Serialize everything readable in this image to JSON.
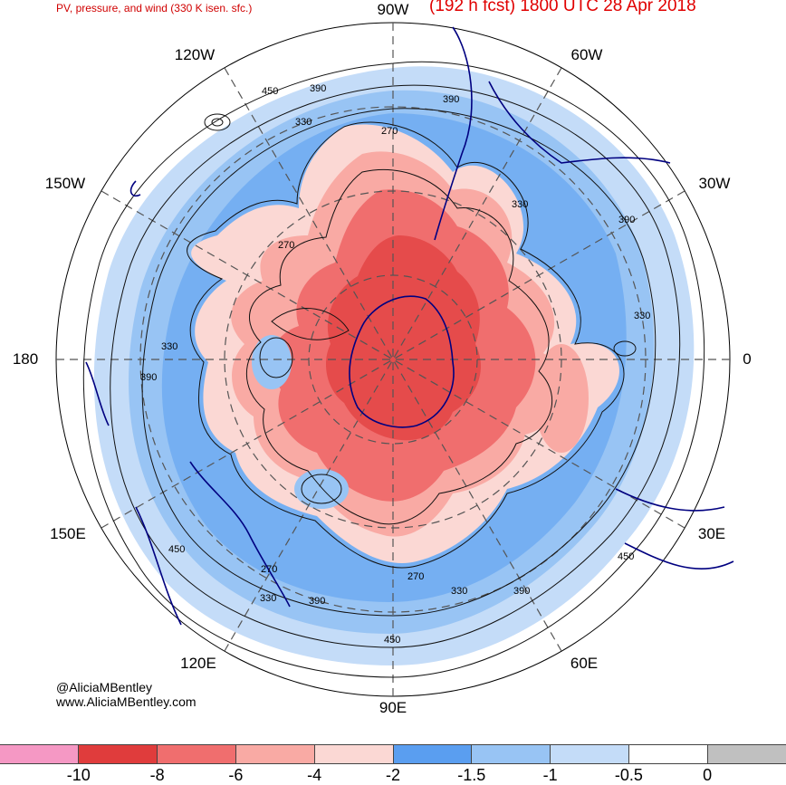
{
  "header": {
    "title_left": "PV, pressure, and wind (330 K isen. sfc.)",
    "title_right": "(192 h fcst) 1800 UTC 28 Apr 2018"
  },
  "longitude_labels": {
    "top": "90W",
    "top_left": "120W",
    "top_right": "60W",
    "upper_left": "150W",
    "upper_right": "30W",
    "left": "180",
    "right": "0",
    "lower_left": "150E",
    "lower_right": "30E",
    "bottom_left": "120E",
    "bottom_right": "60E",
    "bottom": "90E"
  },
  "credits": {
    "handle": "@AliciaMBentley",
    "website": "www.AliciaMBentley.com"
  },
  "contour_labels": {
    "c1": "450",
    "c2": "390",
    "c3": "390",
    "c4": "330",
    "c5": "270",
    "c6": "330",
    "c7": "390",
    "c8": "270",
    "c9": "330",
    "c10": "330",
    "c11": "390",
    "c12": "450",
    "c13": "270",
    "c14": "330",
    "c15": "390",
    "c16": "270",
    "c17": "330",
    "c18": "390",
    "c19": "450",
    "c20": "450"
  },
  "colorbar": {
    "colors": [
      "#f598c4",
      "#e03c3c",
      "#f06e6e",
      "#f9aaa4",
      "#fbd8d4",
      "#5a9ef0",
      "#98c4f4",
      "#c4dcf8",
      "#ffffff",
      "#c0c0c0"
    ],
    "labels": [
      "-10",
      "-8",
      "-6",
      "-4",
      "-2",
      "-1.5",
      "-1",
      "-0.5",
      "0"
    ]
  }
}
